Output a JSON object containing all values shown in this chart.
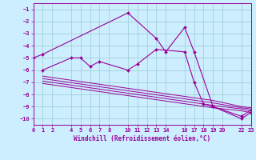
{
  "xlabel": "Windchill (Refroidissement éolien,°C)",
  "bg_color": "#cceeff",
  "grid_color": "#99cccc",
  "line_color": "#990099",
  "xlim": [
    0,
    23
  ],
  "ylim": [
    -10.5,
    -0.5
  ],
  "xticks": [
    0,
    1,
    2,
    4,
    5,
    6,
    7,
    8,
    10,
    11,
    12,
    13,
    14,
    16,
    17,
    18,
    19,
    20,
    22,
    23
  ],
  "yticks": [
    -1,
    -2,
    -3,
    -4,
    -5,
    -6,
    -7,
    -8,
    -9,
    -10
  ],
  "series": [
    {
      "x": [
        0,
        1,
        10,
        13,
        14,
        16,
        17,
        19,
        22,
        23
      ],
      "y": [
        -5.0,
        -4.7,
        -1.3,
        -3.4,
        -4.5,
        -2.5,
        -4.5,
        -9.0,
        -9.8,
        -9.3
      ],
      "has_markers": true
    },
    {
      "x": [
        1,
        4,
        5,
        6,
        7,
        10,
        11,
        13,
        16,
        17,
        18,
        19,
        22,
        23
      ],
      "y": [
        -6.0,
        -5.0,
        -5.0,
        -5.7,
        -5.3,
        -6.0,
        -5.5,
        -4.3,
        -4.5,
        -7.0,
        -8.8,
        -9.0,
        -10.0,
        -9.5
      ],
      "has_markers": true
    },
    {
      "x": [
        1,
        19,
        22,
        23
      ],
      "y": [
        -6.5,
        -8.5,
        -9.0,
        -9.1
      ],
      "has_markers": false
    },
    {
      "x": [
        1,
        19,
        22,
        23
      ],
      "y": [
        -6.7,
        -8.7,
        -9.1,
        -9.2
      ],
      "has_markers": false
    },
    {
      "x": [
        1,
        19,
        22,
        23
      ],
      "y": [
        -6.9,
        -8.9,
        -9.2,
        -9.35
      ],
      "has_markers": false
    },
    {
      "x": [
        1,
        19,
        22,
        23
      ],
      "y": [
        -7.1,
        -9.1,
        -9.35,
        -9.5
      ],
      "has_markers": false
    }
  ]
}
